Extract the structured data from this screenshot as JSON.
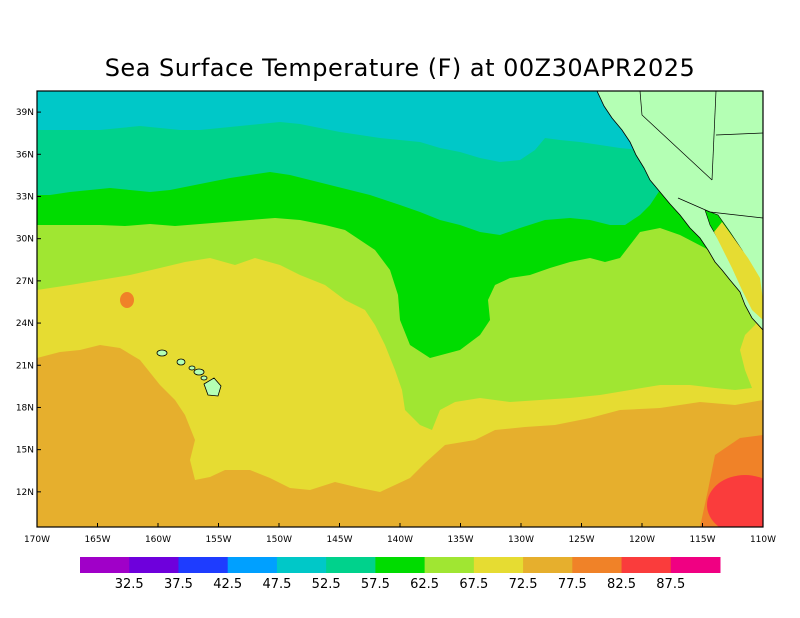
{
  "title": "Sea Surface Temperature (F) at 00Z30APR2025",
  "map": {
    "lon_labels": [
      "170W",
      "165W",
      "160W",
      "155W",
      "150W",
      "145W",
      "140W",
      "135W",
      "130W",
      "125W",
      "120W",
      "115W",
      "110W"
    ],
    "lat_labels": [
      "12N",
      "15N",
      "18N",
      "21N",
      "24N",
      "27N",
      "30N",
      "33N",
      "36N",
      "39N"
    ],
    "lon_range": [
      -170,
      -110
    ],
    "lat_range": [
      9.5,
      40.5
    ]
  },
  "colorbar": {
    "labels": [
      "32.5",
      "37.5",
      "42.5",
      "47.5",
      "52.5",
      "57.5",
      "62.5",
      "67.5",
      "72.5",
      "77.5",
      "82.5",
      "87.5"
    ],
    "colors": [
      "#a000c8",
      "#6e00dc",
      "#1e3cff",
      "#00a0ff",
      "#00c8c8",
      "#00d28c",
      "#00dc00",
      "#a0e632",
      "#e6dc32",
      "#e6af2d",
      "#f08228",
      "#fa3c3c",
      "#f00082"
    ]
  },
  "colors": {
    "land": "#b4ffb4",
    "c47": "#00c8c8",
    "c52": "#00d28c",
    "c57": "#00dc00",
    "c62": "#a0e632",
    "c67": "#e6dc32",
    "c72": "#e6af2d",
    "c77": "#f08228",
    "c82": "#fa3c3c"
  }
}
